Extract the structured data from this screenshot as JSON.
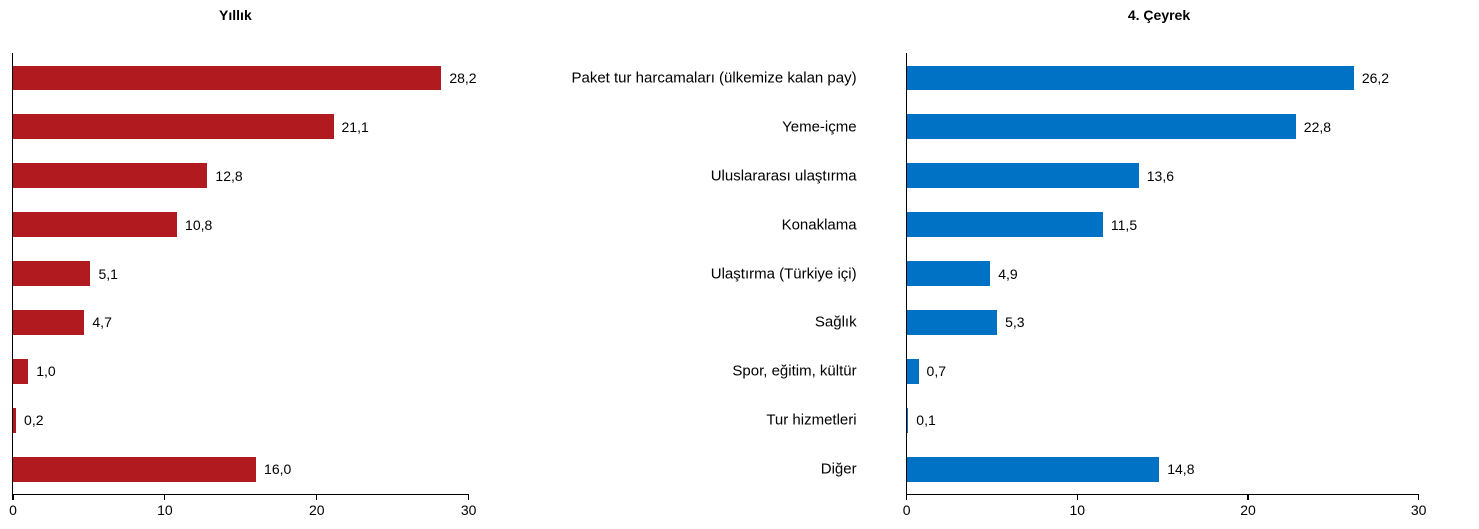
{
  "chart_data": {
    "type": "bar",
    "orientation": "horizontal",
    "categories": [
      "Paket tur harcamaları (ülkemize kalan pay)",
      "Yeme-içme",
      "Uluslararası ulaştırma",
      "Konaklama",
      "Ulaştırma (Türkiye içi)",
      "Sağlık",
      "Spor, eğitim, kültür",
      "Tur hizmetleri",
      "Diğer"
    ],
    "series": [
      {
        "name": "Yıllık",
        "color": "#B11A1F",
        "values": [
          28.2,
          21.1,
          12.8,
          10.8,
          5.1,
          4.7,
          1.0,
          0.2,
          16.0
        ],
        "value_labels": [
          "28,2",
          "21,1",
          "12,8",
          "10,8",
          "5,1",
          "4,7",
          "1,0",
          "0,2",
          "16,0"
        ]
      },
      {
        "name": "4. Çeyrek",
        "color": "#0072C6",
        "values": [
          26.2,
          22.8,
          13.6,
          11.5,
          4.9,
          5.3,
          0.7,
          0.1,
          14.8
        ],
        "value_labels": [
          "26,2",
          "22,8",
          "13,6",
          "11,5",
          "4,9",
          "5,3",
          "0,7",
          "0,1",
          "14,8"
        ]
      }
    ],
    "xlim": [
      0,
      30
    ],
    "xticks": [
      0,
      10,
      20,
      30
    ],
    "xtick_labels": [
      "0",
      "10",
      "20",
      "30"
    ],
    "grid": false,
    "legend": "none",
    "value_label_position": "right-of-bar"
  },
  "titles": {
    "left": "Yıllık",
    "right": "4. Çeyrek"
  },
  "colors": {
    "left_bar": "#B11A1F",
    "right_bar": "#0072C6",
    "axis": "#000000",
    "text": "#000000",
    "background": "#FFFFFF"
  }
}
